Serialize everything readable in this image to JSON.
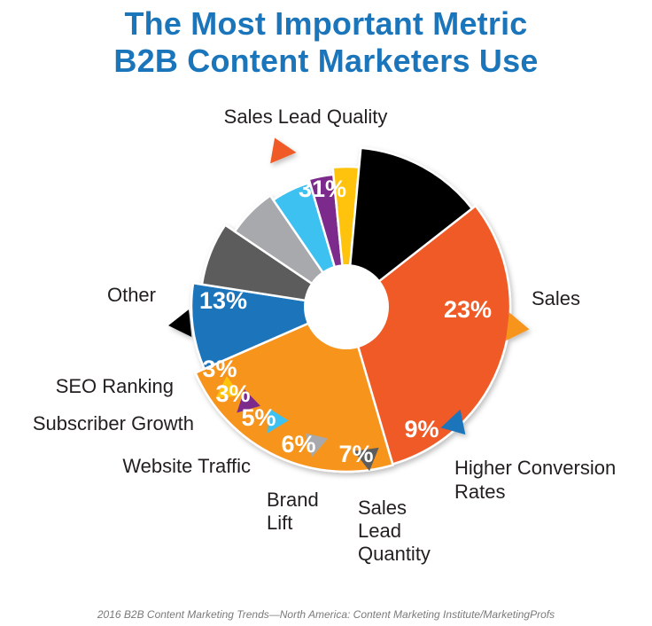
{
  "title_lines": [
    "The Most Important Metric",
    "B2B Content Marketers Use"
  ],
  "source": "2016 B2B Content Marketing Trends—North America: Content Marketing Institute/MarketingProfs",
  "colors": {
    "title": "#1b75bb",
    "background": "#ffffff"
  },
  "chart_data": {
    "type": "pie",
    "donut": true,
    "title": "The Most Important Metric B2B Content Marketers Use",
    "slices": [
      {
        "label": "Sales Lead Quality",
        "value": 31,
        "value_label": "31%",
        "color": "#f05a28"
      },
      {
        "label": "Sales",
        "value": 23,
        "value_label": "23%",
        "color": "#f7941d"
      },
      {
        "label": "Higher Conversion Rates",
        "value": 9,
        "value_label": "9%",
        "color": "#1b75bb"
      },
      {
        "label": "Sales Lead Quantity",
        "value": 7,
        "value_label": "7%",
        "color": "#5b5b5b"
      },
      {
        "label": "Brand Lift",
        "value": 6,
        "value_label": "6%",
        "color": "#a7a9ac"
      },
      {
        "label": "Website Traffic",
        "value": 5,
        "value_label": "5%",
        "color": "#3dc1f0"
      },
      {
        "label": "Subscriber Growth",
        "value": 3,
        "value_label": "3%",
        "color": "#7b2c8c"
      },
      {
        "label": "SEO Ranking",
        "value": 3,
        "value_label": "3%",
        "color": "#ffc20e"
      },
      {
        "label": "Other",
        "value": 13,
        "value_label": "13%",
        "color": "#000000"
      }
    ]
  }
}
